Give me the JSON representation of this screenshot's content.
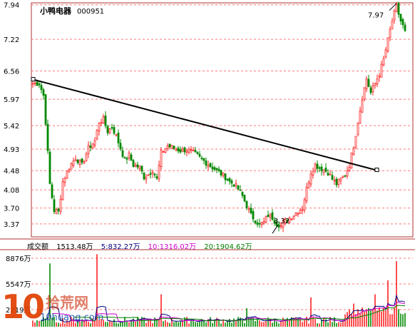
{
  "stock": {
    "name": "小鸭电器",
    "code": "000951"
  },
  "chart_data": {
    "type": "candlestick",
    "ylim": [
      3.1,
      7.98
    ],
    "y_ticks": [
      "7.94",
      "7.22",
      "6.56",
      "5.97",
      "5.42",
      "4.93",
      "4.48",
      "4.08",
      "3.70",
      "3.37"
    ],
    "annotations": {
      "high": "7.97",
      "low": "3.32"
    },
    "trendline": {
      "from_price": 6.38,
      "to_price": 4.49
    },
    "path": [
      [
        0,
        6.3
      ],
      [
        3,
        6.3
      ],
      [
        5,
        6.05
      ],
      [
        6,
        5.5
      ],
      [
        8,
        4.2
      ],
      [
        10,
        3.65
      ],
      [
        12,
        3.62
      ],
      [
        14,
        4.25
      ],
      [
        17,
        4.55
      ],
      [
        20,
        4.75
      ],
      [
        23,
        4.6
      ],
      [
        26,
        4.95
      ],
      [
        29,
        5.1
      ],
      [
        31,
        5.5
      ],
      [
        33,
        5.55
      ],
      [
        35,
        5.3
      ],
      [
        37,
        5.4
      ],
      [
        39,
        5.2
      ],
      [
        41,
        4.95
      ],
      [
        43,
        4.7
      ],
      [
        45,
        4.8
      ],
      [
        47,
        4.6
      ],
      [
        50,
        4.55
      ],
      [
        52,
        4.35
      ],
      [
        54,
        4.4
      ],
      [
        56,
        4.5
      ],
      [
        58,
        4.3
      ],
      [
        60,
        4.85
      ],
      [
        63,
        5.0
      ],
      [
        66,
        4.95
      ],
      [
        69,
        4.9
      ],
      [
        72,
        4.92
      ],
      [
        75,
        4.85
      ],
      [
        78,
        4.75
      ],
      [
        81,
        4.65
      ],
      [
        84,
        4.55
      ],
      [
        87,
        4.45
      ],
      [
        90,
        4.35
      ],
      [
        92,
        4.25
      ],
      [
        94,
        4.2
      ],
      [
        96,
        4.1
      ],
      [
        98,
        3.95
      ],
      [
        100,
        3.75
      ],
      [
        102,
        3.55
      ],
      [
        104,
        3.45
      ],
      [
        106,
        3.35
      ],
      [
        108,
        3.4
      ],
      [
        110,
        3.55
      ],
      [
        112,
        3.5
      ],
      [
        114,
        3.38
      ],
      [
        116,
        3.33
      ],
      [
        118,
        3.42
      ],
      [
        120,
        3.5
      ],
      [
        122,
        3.55
      ],
      [
        124,
        3.65
      ],
      [
        126,
        3.7
      ],
      [
        128,
        4.1
      ],
      [
        130,
        4.45
      ],
      [
        132,
        4.6
      ],
      [
        134,
        4.55
      ],
      [
        136,
        4.5
      ],
      [
        138,
        4.45
      ],
      [
        140,
        4.3
      ],
      [
        142,
        4.2
      ],
      [
        144,
        4.3
      ],
      [
        146,
        4.4
      ],
      [
        148,
        4.6
      ],
      [
        150,
        5.0
      ],
      [
        152,
        5.5
      ],
      [
        154,
        6.0
      ],
      [
        156,
        6.4
      ],
      [
        158,
        6.1
      ],
      [
        160,
        6.3
      ],
      [
        162,
        6.5
      ],
      [
        164,
        6.8
      ],
      [
        166,
        7.2
      ],
      [
        168,
        7.6
      ],
      [
        170,
        7.9
      ],
      [
        172,
        7.6
      ],
      [
        174,
        7.4
      ]
    ],
    "volume": {
      "title": "成交额",
      "value": "1513.48万",
      "ma5": "5:832.27万",
      "ma10": "10:1316.02万",
      "ma20": "20:1904.62万",
      "y_ticks": [
        "8876万",
        "5547万",
        "2219万"
      ],
      "ymax": 9800,
      "spikes": [
        [
          8,
          8200
        ],
        [
          30,
          9400
        ],
        [
          60,
          4200
        ],
        [
          100,
          2400
        ],
        [
          130,
          3800
        ],
        [
          150,
          3000
        ],
        [
          160,
          4200
        ],
        [
          166,
          6000
        ],
        [
          170,
          8500
        ]
      ]
    },
    "colors": {
      "up": "#ff2222",
      "down": "#008800",
      "trend": "#000000",
      "grid": "#ff7777",
      "frame": "#b03030",
      "ma5": "#000080",
      "ma10": "#cc00cc",
      "ma20": "#008000"
    }
  },
  "watermark": {
    "big": "10",
    "cn": "拾荒网",
    "url": "10huang.com"
  }
}
